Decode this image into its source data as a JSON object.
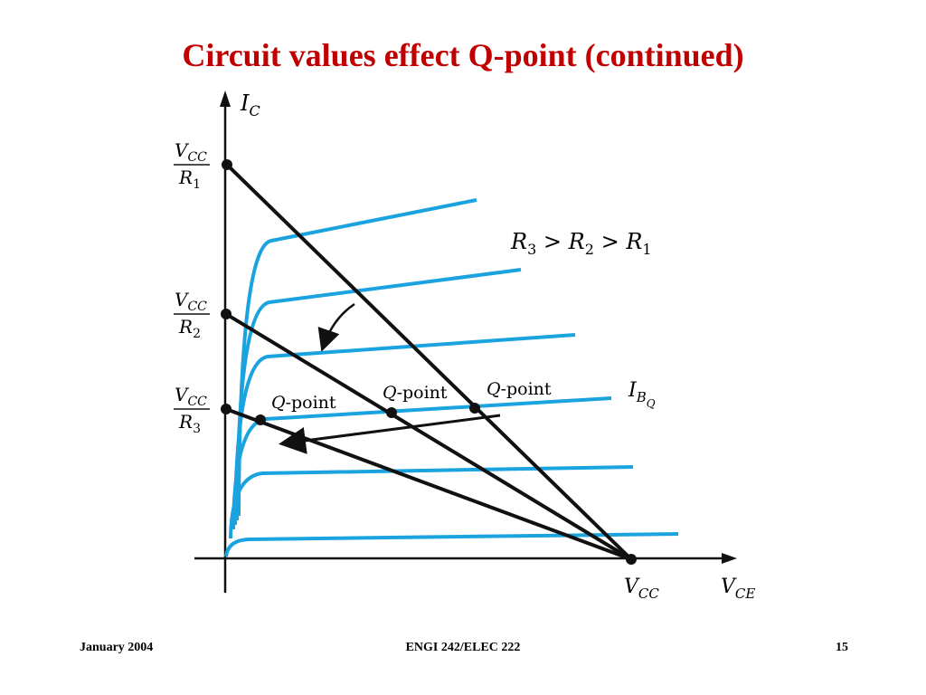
{
  "slide": {
    "title": "Circuit values effect Q-point (continued)",
    "footer_left": "January 2004",
    "footer_center": "ENGI 242/ELEC 222",
    "footer_right": "15"
  },
  "diagram": {
    "y_axis_label": "I",
    "y_axis_sub": "C",
    "x_axis_label": "V",
    "x_axis_sub": "CE",
    "vcc_label": "V",
    "vcc_sub": "CC",
    "relation": {
      "r3": "R",
      "r3_sub": "3",
      "gt1": ">",
      "r2": "R",
      "r2_sub": "2",
      "gt2": ">",
      "r1": "R",
      "r1_sub": "1"
    },
    "intercepts": [
      {
        "num": "V",
        "num_sub": "CC",
        "den": "R",
        "den_sub": "1"
      },
      {
        "num": "V",
        "num_sub": "CC",
        "den": "R",
        "den_sub": "2"
      },
      {
        "num": "V",
        "num_sub": "CC",
        "den": "R",
        "den_sub": "3"
      }
    ],
    "qpoint_q": "Q",
    "qpoint_text": "-point",
    "ibq_label": "I",
    "ibq_sub": "B",
    "ibq_subsub": "Q",
    "colors": {
      "curve": "#1aa3de",
      "line": "#111111"
    }
  }
}
